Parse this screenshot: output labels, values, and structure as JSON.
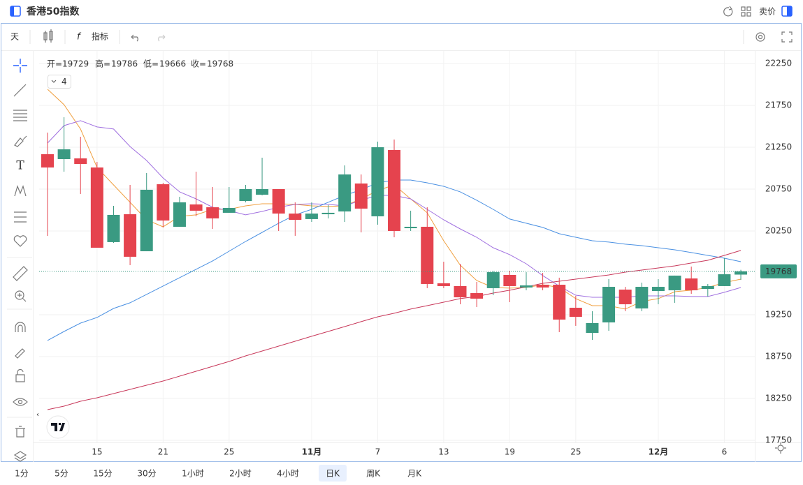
{
  "header": {
    "title": "香港50指数",
    "sell_label": "卖价"
  },
  "toolbar": {
    "period": "天",
    "indicators": "指标"
  },
  "intervals": [
    "1分",
    "5分",
    "15分",
    "30分",
    "1小时",
    "2小时",
    "4小时",
    "日K",
    "周K",
    "月K"
  ],
  "active_interval": 7,
  "chart_data": {
    "type": "candlestick",
    "ohlc_labels": [
      "开=",
      "高=",
      "低=",
      "收="
    ],
    "indicator_toggle": 4,
    "categories": [
      null,
      null,
      null,
      "15",
      null,
      null,
      null,
      "21",
      null,
      null,
      null,
      "25",
      null,
      null,
      null,
      null,
      "11月",
      null,
      null,
      null,
      "7",
      null,
      null,
      null,
      "13",
      null,
      null,
      null,
      "19",
      null,
      null,
      null,
      "25",
      null,
      null,
      null,
      null,
      "12月",
      null,
      null,
      null,
      "6",
      null
    ],
    "open": [
      21167,
      21108,
      21117,
      21008,
      20117,
      20450,
      20008,
      20808,
      20300,
      20567,
      20533,
      20467,
      20608,
      20683,
      20750,
      20458,
      20392,
      20450,
      20483,
      20817,
      20425,
      21217,
      20283,
      20300,
      19625,
      19592,
      19508,
      19567,
      19725,
      19575,
      19608,
      19608,
      19333,
      19033,
      19158,
      19550,
      19325,
      19533,
      19542,
      19683,
      19558,
      19592,
      19729
    ],
    "high": [
      21425,
      21608,
      21375,
      21075,
      20550,
      20800,
      20942,
      20825,
      20658,
      20958,
      20775,
      20775,
      20800,
      21125,
      20750,
      20592,
      20592,
      20560,
      21033,
      20925,
      21317,
      21342,
      20492,
      20533,
      19883,
      19858,
      19642,
      19775,
      19775,
      19758,
      19750,
      19692,
      19475,
      19292,
      19675,
      19583,
      19633,
      19675,
      19717,
      19825,
      19617,
      19925,
      19786
    ],
    "low": [
      20192,
      20958,
      20692,
      20050,
      20108,
      19842,
      20008,
      20292,
      20300,
      20425,
      20275,
      20467,
      20592,
      20675,
      20250,
      20192,
      20358,
      20400,
      20358,
      20233,
      20325,
      20175,
      20250,
      19567,
      19567,
      19375,
      19342,
      19483,
      19400,
      19542,
      19542,
      19042,
      19117,
      18950,
      19058,
      19292,
      19292,
      19375,
      19392,
      19500,
      19467,
      19592,
      19666
    ],
    "close": [
      21008,
      21225,
      21050,
      20050,
      20442,
      19942,
      20742,
      20375,
      20592,
      20492,
      20400,
      20525,
      20750,
      20750,
      20458,
      20383,
      20458,
      20467,
      20925,
      20517,
      21250,
      20250,
      20300,
      19617,
      19592,
      19458,
      19442,
      19758,
      19592,
      19600,
      19575,
      19192,
      19225,
      19150,
      19583,
      19375,
      19583,
      19583,
      19717,
      19542,
      19592,
      19733,
      19768
    ],
    "up_color": "#3a9a82",
    "down_color": "#e5434e",
    "series": [
      {
        "color": "#f0a040",
        "values": [
          21942,
          21758,
          21467,
          21008,
          20800,
          20592,
          20383,
          20300,
          20425,
          20442,
          20508,
          20508,
          20550,
          20575,
          20575,
          20567,
          20550,
          20542,
          20550,
          20633,
          20733,
          20800,
          20633,
          20467,
          20133,
          19842,
          19658,
          19575,
          19567,
          19575,
          19608,
          19575,
          19442,
          19358,
          19358,
          19317,
          19408,
          19442,
          19525,
          19542,
          19575,
          19633,
          19675
        ]
      },
      {
        "color": "#a070e0",
        "values": [
          21300,
          21508,
          21567,
          21492,
          21467,
          21258,
          21092,
          20883,
          20717,
          20633,
          20533,
          20492,
          20442,
          20483,
          20533,
          20567,
          20575,
          20567,
          20550,
          20617,
          20675,
          20675,
          20633,
          20508,
          20383,
          20275,
          20175,
          20050,
          19967,
          19858,
          19717,
          19592,
          19483,
          19458,
          19458,
          19458,
          19475,
          19475,
          19475,
          19467,
          19467,
          19517,
          19575
        ]
      },
      {
        "color": "#4a90e2",
        "values": [
          18942,
          19050,
          19150,
          19217,
          19325,
          19392,
          19492,
          19592,
          19692,
          19792,
          19892,
          20008,
          20125,
          20233,
          20342,
          20442,
          20508,
          20592,
          20675,
          20742,
          20825,
          20858,
          20858,
          20825,
          20783,
          20717,
          20617,
          20508,
          20392,
          20342,
          20292,
          20217,
          20175,
          20133,
          20117,
          20092,
          20075,
          20050,
          20025,
          19992,
          19958,
          19925,
          19883
        ]
      },
      {
        "color": "#c8385a",
        "values": [
          18117,
          18158,
          18217,
          18258,
          18308,
          18358,
          18408,
          18458,
          18517,
          18575,
          18633,
          18692,
          18758,
          18817,
          18875,
          18933,
          18992,
          19050,
          19108,
          19167,
          19225,
          19267,
          19317,
          19358,
          19400,
          19442,
          19467,
          19508,
          19542,
          19583,
          19625,
          19650,
          19675,
          19700,
          19725,
          19758,
          19783,
          19808,
          19833,
          19867,
          19900,
          19958,
          20017
        ]
      }
    ],
    "ylim": [
      17725,
      22383
    ],
    "yticks": [
      17750,
      18250,
      18750,
      19250,
      20250,
      20750,
      21250,
      21750,
      22250
    ],
    "grid": true
  }
}
